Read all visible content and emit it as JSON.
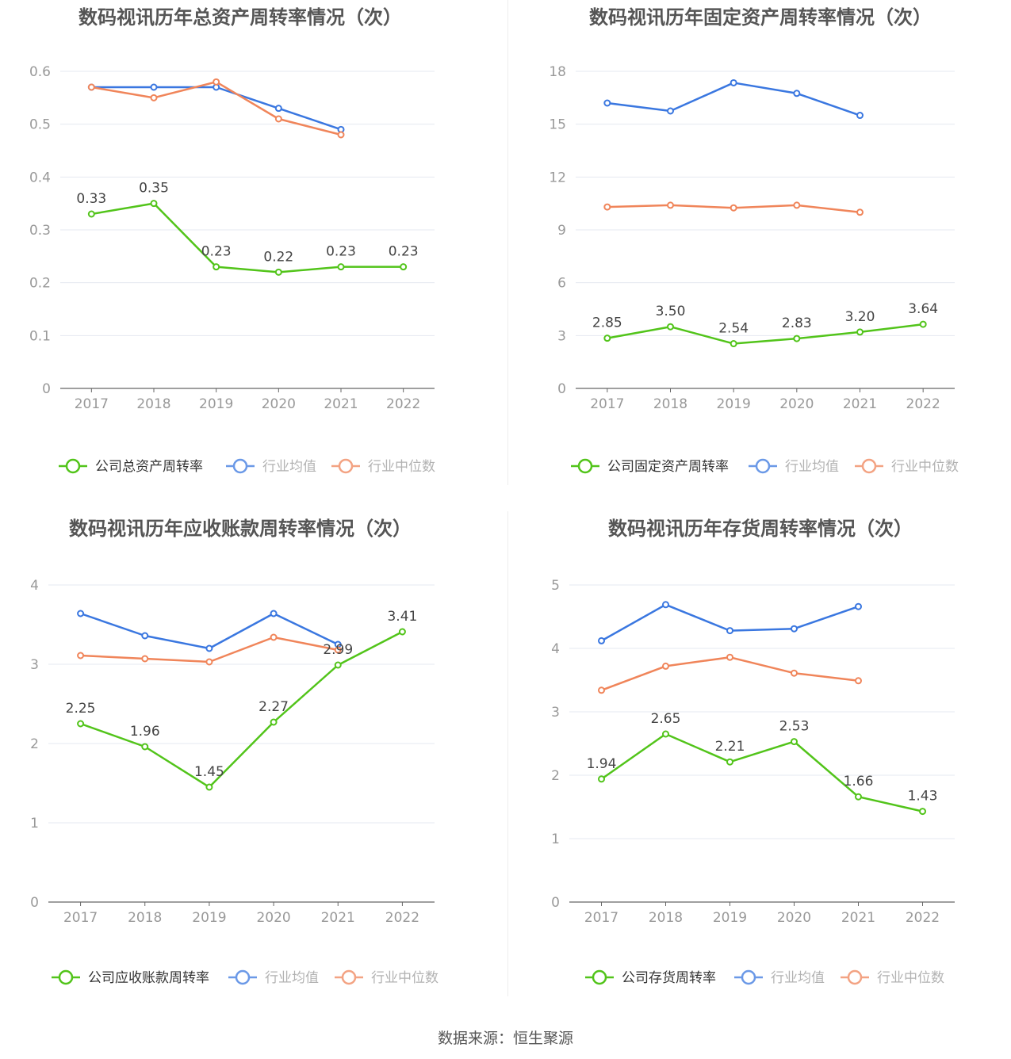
{
  "colors": {
    "company": "#52c41a",
    "avg": "#3a77e0",
    "median": "#f0855a",
    "grid": "#e5e8f0",
    "axis": "#666666",
    "tick": "#999999",
    "title": "#555555"
  },
  "source": "数据来源：恒生聚源",
  "chart_data": [
    {
      "type": "line",
      "title": "数码视讯历年总资产周转率情况（次）",
      "categories": [
        "2017",
        "2018",
        "2019",
        "2020",
        "2021",
        "2022"
      ],
      "ylim": [
        0,
        0.6
      ],
      "yticks": [
        "0",
        "0.1",
        "0.2",
        "0.3",
        "0.4",
        "0.5",
        "0.6"
      ],
      "series": [
        {
          "name": "公司总资产周转率",
          "key": "company",
          "values": [
            0.33,
            0.35,
            0.23,
            0.22,
            0.23,
            0.23
          ],
          "labels": [
            "0.33",
            "0.35",
            "0.23",
            "0.22",
            "0.23",
            "0.23"
          ]
        },
        {
          "name": "行业均值",
          "key": "avg",
          "values": [
            0.57,
            0.57,
            0.57,
            0.53,
            0.49,
            null
          ]
        },
        {
          "name": "行业中位数",
          "key": "median",
          "values": [
            0.57,
            0.55,
            0.58,
            0.51,
            0.48,
            null
          ]
        }
      ]
    },
    {
      "type": "line",
      "title": "数码视讯历年固定资产周转率情况（次）",
      "categories": [
        "2017",
        "2018",
        "2019",
        "2020",
        "2021",
        "2022"
      ],
      "ylim": [
        0,
        18
      ],
      "yticks": [
        "0",
        "3",
        "6",
        "9",
        "12",
        "15",
        "18"
      ],
      "series": [
        {
          "name": "公司固定资产周转率",
          "key": "company",
          "values": [
            2.85,
            3.5,
            2.54,
            2.83,
            3.2,
            3.64
          ],
          "labels": [
            "2.85",
            "3.50",
            "2.54",
            "2.83",
            "3.20",
            "3.64"
          ]
        },
        {
          "name": "行业均值",
          "key": "avg",
          "values": [
            16.2,
            15.75,
            17.35,
            16.75,
            15.5,
            null
          ]
        },
        {
          "name": "行业中位数",
          "key": "median",
          "values": [
            10.3,
            10.4,
            10.25,
            10.4,
            10.0,
            null
          ]
        }
      ]
    },
    {
      "type": "line",
      "title": "数码视讯历年应收账款周转率情况（次）",
      "categories": [
        "2017",
        "2018",
        "2019",
        "2020",
        "2021",
        "2022"
      ],
      "ylim": [
        0,
        4
      ],
      "yticks": [
        "0",
        "1",
        "2",
        "3",
        "4"
      ],
      "series": [
        {
          "name": "公司应收账款周转率",
          "key": "company",
          "values": [
            2.25,
            1.96,
            1.45,
            2.27,
            2.99,
            3.41
          ],
          "labels": [
            "2.25",
            "1.96",
            "1.45",
            "2.27",
            "2.99",
            "3.41"
          ]
        },
        {
          "name": "行业均值",
          "key": "avg",
          "values": [
            3.64,
            3.36,
            3.2,
            3.64,
            3.25,
            null
          ]
        },
        {
          "name": "行业中位数",
          "key": "median",
          "values": [
            3.11,
            3.07,
            3.03,
            3.34,
            3.18,
            null
          ]
        }
      ]
    },
    {
      "type": "line",
      "title": "数码视讯历年存货周转率情况（次）",
      "categories": [
        "2017",
        "2018",
        "2019",
        "2020",
        "2021",
        "2022"
      ],
      "ylim": [
        0,
        5
      ],
      "yticks": [
        "0",
        "1",
        "2",
        "3",
        "4",
        "5"
      ],
      "series": [
        {
          "name": "公司存货周转率",
          "key": "company",
          "values": [
            1.94,
            2.65,
            2.21,
            2.53,
            1.66,
            1.43
          ],
          "labels": [
            "1.94",
            "2.65",
            "2.21",
            "2.53",
            "1.66",
            "1.43"
          ]
        },
        {
          "name": "行业均值",
          "key": "avg",
          "values": [
            4.12,
            4.69,
            4.28,
            4.31,
            4.66,
            null
          ]
        },
        {
          "name": "行业中位数",
          "key": "median",
          "values": [
            3.34,
            3.72,
            3.86,
            3.61,
            3.49,
            null
          ]
        }
      ]
    }
  ]
}
